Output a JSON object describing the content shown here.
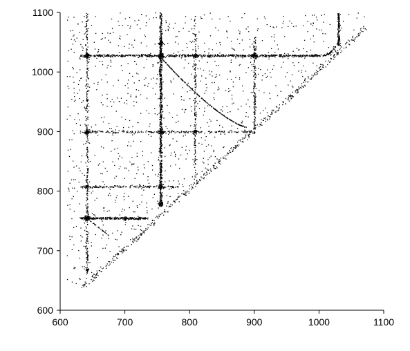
{
  "chart_data": {
    "type": "scatter",
    "title": "",
    "xlabel": "",
    "ylabel": "",
    "xlim": [
      600,
      1100
    ],
    "ylim": [
      600,
      1100
    ],
    "x_ticks": [
      600,
      700,
      800,
      900,
      1000,
      1100
    ],
    "y_ticks": [
      600,
      700,
      800,
      900,
      1000,
      1100
    ],
    "x_tick_labels": [
      "600",
      "700",
      "800",
      "900",
      "1000",
      "1100"
    ],
    "y_tick_labels": [
      "600",
      "700",
      "800",
      "900",
      "1000",
      "1100"
    ],
    "grid": false,
    "legend": "none",
    "point_color": "#000000",
    "description_of_structure": {
      "horizontal_bands_y": [
        1028,
        900,
        808,
        755
      ],
      "vertical_bands_x": [
        641,
        755,
        808,
        900,
        1030
      ],
      "diagonal_boundary": "y = x",
      "curve": {
        "from": [
          755,
          1025
        ],
        "to": [
          887,
          908
        ]
      }
    },
    "series": [
      {
        "values": [
          [
            641,
            1028
          ],
          [
            755,
            1028
          ],
          [
            808,
            1028
          ],
          [
            900,
            1028
          ],
          [
            1000,
            1028
          ],
          [
            1030,
            1050
          ],
          [
            641,
            900
          ],
          [
            755,
            900
          ],
          [
            808,
            900
          ],
          [
            900,
            900
          ],
          [
            641,
            808
          ],
          [
            755,
            808
          ],
          [
            780,
            808
          ],
          [
            641,
            755
          ],
          [
            700,
            755
          ],
          [
            730,
            755
          ],
          [
            641,
            670
          ],
          [
            755,
            1050
          ],
          [
            1030,
            1090
          ],
          [
            800,
            970
          ],
          [
            850,
            935
          ],
          [
            887,
            908
          ],
          [
            900,
            915
          ]
        ]
      }
    ]
  }
}
